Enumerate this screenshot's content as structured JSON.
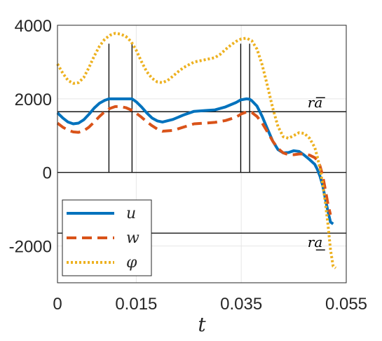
{
  "chart_data": {
    "type": "line",
    "xlabel": "t",
    "ylabel": "",
    "xlim": [
      0,
      0.055
    ],
    "ylim": [
      -3000,
      4000
    ],
    "xticks": [
      0,
      0.015,
      0.035,
      0.055
    ],
    "xtick_labels": [
      "0",
      "0.015",
      "0.035",
      "0.055"
    ],
    "yticks": [
      -2000,
      0,
      2000,
      4000
    ],
    "ytick_labels": [
      "-2000",
      "0",
      "2000",
      "4000"
    ],
    "grid": true,
    "legend_position": "bottom-left",
    "series": [
      {
        "name": "u",
        "color": "#0072BD",
        "style": "solid",
        "x": [
          0,
          0.001,
          0.002,
          0.003,
          0.004,
          0.005,
          0.006,
          0.007,
          0.008,
          0.009,
          0.0098,
          0.012,
          0.0142,
          0.015,
          0.016,
          0.017,
          0.018,
          0.019,
          0.02,
          0.022,
          0.024,
          0.026,
          0.028,
          0.03,
          0.032,
          0.034,
          0.0349,
          0.036,
          0.0366,
          0.037,
          0.038,
          0.039,
          0.04,
          0.041,
          0.042,
          0.043,
          0.044,
          0.045,
          0.046,
          0.047,
          0.048,
          0.049,
          0.0495,
          0.05,
          0.0505,
          0.051,
          0.0515,
          0.052,
          0.0525
        ],
        "y": [
          1620,
          1480,
          1370,
          1320,
          1340,
          1430,
          1580,
          1750,
          1880,
          1960,
          2000,
          2000,
          2000,
          1920,
          1780,
          1620,
          1480,
          1400,
          1370,
          1440,
          1560,
          1660,
          1680,
          1700,
          1780,
          1900,
          1970,
          2000,
          1990,
          1950,
          1800,
          1520,
          1180,
          850,
          620,
          530,
          540,
          590,
          570,
          470,
          350,
          220,
          80,
          -100,
          -350,
          -700,
          -1050,
          -1350,
          -1400
        ]
      },
      {
        "name": "w",
        "color": "#D95319",
        "style": "dashed",
        "x": [
          0,
          0.001,
          0.002,
          0.003,
          0.004,
          0.005,
          0.006,
          0.007,
          0.008,
          0.009,
          0.01,
          0.011,
          0.012,
          0.013,
          0.014,
          0.015,
          0.016,
          0.017,
          0.018,
          0.019,
          0.02,
          0.022,
          0.024,
          0.026,
          0.028,
          0.03,
          0.032,
          0.034,
          0.035,
          0.036,
          0.037,
          0.038,
          0.039,
          0.04,
          0.041,
          0.042,
          0.043,
          0.044,
          0.045,
          0.046,
          0.047,
          0.048,
          0.049,
          0.0495,
          0.05,
          0.0505,
          0.051,
          0.0515,
          0.052
        ],
        "y": [
          1340,
          1230,
          1150,
          1100,
          1090,
          1130,
          1230,
          1370,
          1520,
          1650,
          1740,
          1790,
          1790,
          1760,
          1700,
          1610,
          1500,
          1380,
          1270,
          1180,
          1120,
          1140,
          1230,
          1320,
          1340,
          1360,
          1410,
          1500,
          1590,
          1640,
          1630,
          1520,
          1340,
          1100,
          850,
          650,
          530,
          480,
          480,
          500,
          500,
          470,
          400,
          330,
          180,
          -80,
          -450,
          -850,
          -1150
        ]
      },
      {
        "name": "φ",
        "color": "#EDB120",
        "style": "dotted",
        "x": [
          0,
          0.001,
          0.002,
          0.003,
          0.004,
          0.005,
          0.006,
          0.007,
          0.008,
          0.009,
          0.01,
          0.011,
          0.012,
          0.013,
          0.014,
          0.015,
          0.016,
          0.017,
          0.018,
          0.019,
          0.02,
          0.021,
          0.022,
          0.023,
          0.024,
          0.026,
          0.028,
          0.03,
          0.031,
          0.032,
          0.033,
          0.034,
          0.035,
          0.036,
          0.037,
          0.038,
          0.039,
          0.04,
          0.041,
          0.042,
          0.043,
          0.044,
          0.045,
          0.046,
          0.047,
          0.048,
          0.049,
          0.0495,
          0.05,
          0.0505,
          0.051,
          0.0515,
          0.052,
          0.0525,
          0.053
        ],
        "y": [
          2950,
          2700,
          2500,
          2420,
          2440,
          2580,
          2850,
          3160,
          3430,
          3620,
          3730,
          3780,
          3760,
          3700,
          3560,
          3320,
          3010,
          2740,
          2560,
          2460,
          2440,
          2500,
          2620,
          2740,
          2850,
          3000,
          3060,
          3120,
          3210,
          3340,
          3460,
          3560,
          3630,
          3650,
          3580,
          3350,
          2920,
          2350,
          1750,
          1250,
          970,
          930,
          1000,
          1080,
          1060,
          930,
          680,
          420,
          100,
          -300,
          -800,
          -1400,
          -2100,
          -2550,
          -2600
        ]
      }
    ],
    "hlines": [
      1650,
      0,
      -1650
    ],
    "vlines": [
      0.0098,
      0.0142,
      0.0349,
      0.0366
    ],
    "annotations": [
      {
        "text": "ra",
        "decoration": "overline",
        "at_x": 0.0495,
        "at_y": 1650,
        "placement": "above"
      },
      {
        "text": "ra",
        "decoration": "underline",
        "at_x": 0.0495,
        "at_y": -1650,
        "placement": "below"
      }
    ]
  }
}
